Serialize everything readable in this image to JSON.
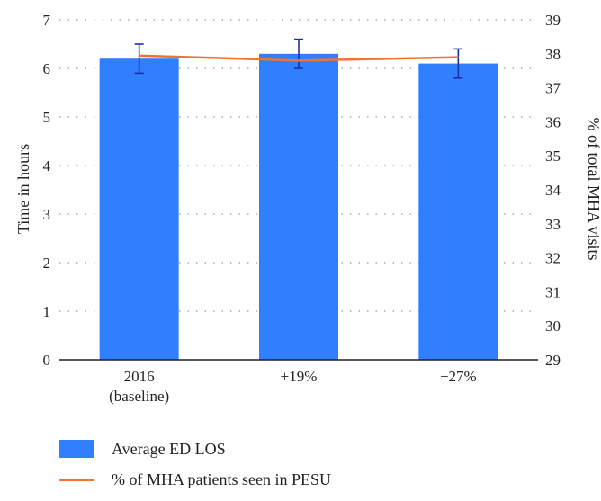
{
  "colors": {
    "bar": "#2f7fff",
    "line": "#f07430",
    "error": "#1f2fa8",
    "grid": "#9a9a9a"
  },
  "chart_data": {
    "type": "bar",
    "categories": [
      [
        "2016",
        "(baseline)"
      ],
      [
        "+19%"
      ],
      [
        "−27%"
      ]
    ],
    "series": [
      {
        "name": "Average ED LOS",
        "type": "bar",
        "axis": "left",
        "values": [
          6.2,
          6.3,
          6.1
        ],
        "error_low": [
          5.9,
          6.0,
          5.8
        ],
        "error_high": [
          6.5,
          6.6,
          6.4
        ]
      },
      {
        "name": "% of MHA patients seen in PESU",
        "type": "line",
        "axis": "right",
        "values": [
          37.95,
          37.8,
          37.9
        ]
      }
    ],
    "ylabel": "Time in hours",
    "y2label": "% of total MHA visits",
    "ylim": [
      0,
      7
    ],
    "y2lim": [
      29,
      39
    ],
    "yticks": [
      "0",
      "1",
      "2",
      "3",
      "4",
      "5",
      "6",
      "7"
    ],
    "y2ticks": [
      "29",
      "30",
      "31",
      "32",
      "33",
      "34",
      "35",
      "36",
      "37",
      "38",
      "39"
    ],
    "grid": "horizontal-dotted",
    "legend_position": "bottom-left"
  }
}
